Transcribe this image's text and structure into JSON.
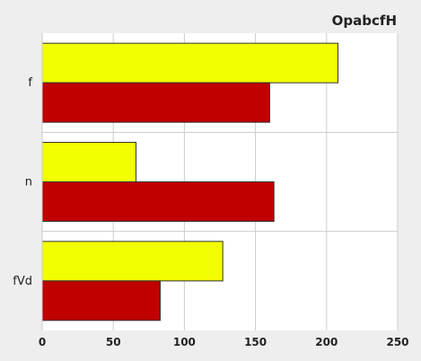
{
  "chart_data": {
    "type": "bar",
    "orientation": "horizontal",
    "title": "OpabcfH",
    "xlabel": "",
    "ylabel": "",
    "categories": [
      "f",
      "n",
      "fVd"
    ],
    "xlim": [
      0,
      250
    ],
    "x_ticks": [
      "0",
      "50",
      "100",
      "150",
      "200",
      "250"
    ],
    "grid": true,
    "series": [
      {
        "values": [
          208,
          66,
          127
        ],
        "color": "#f2ff00"
      },
      {
        "values": [
          160,
          163,
          83
        ],
        "color": "#c00000"
      }
    ]
  }
}
